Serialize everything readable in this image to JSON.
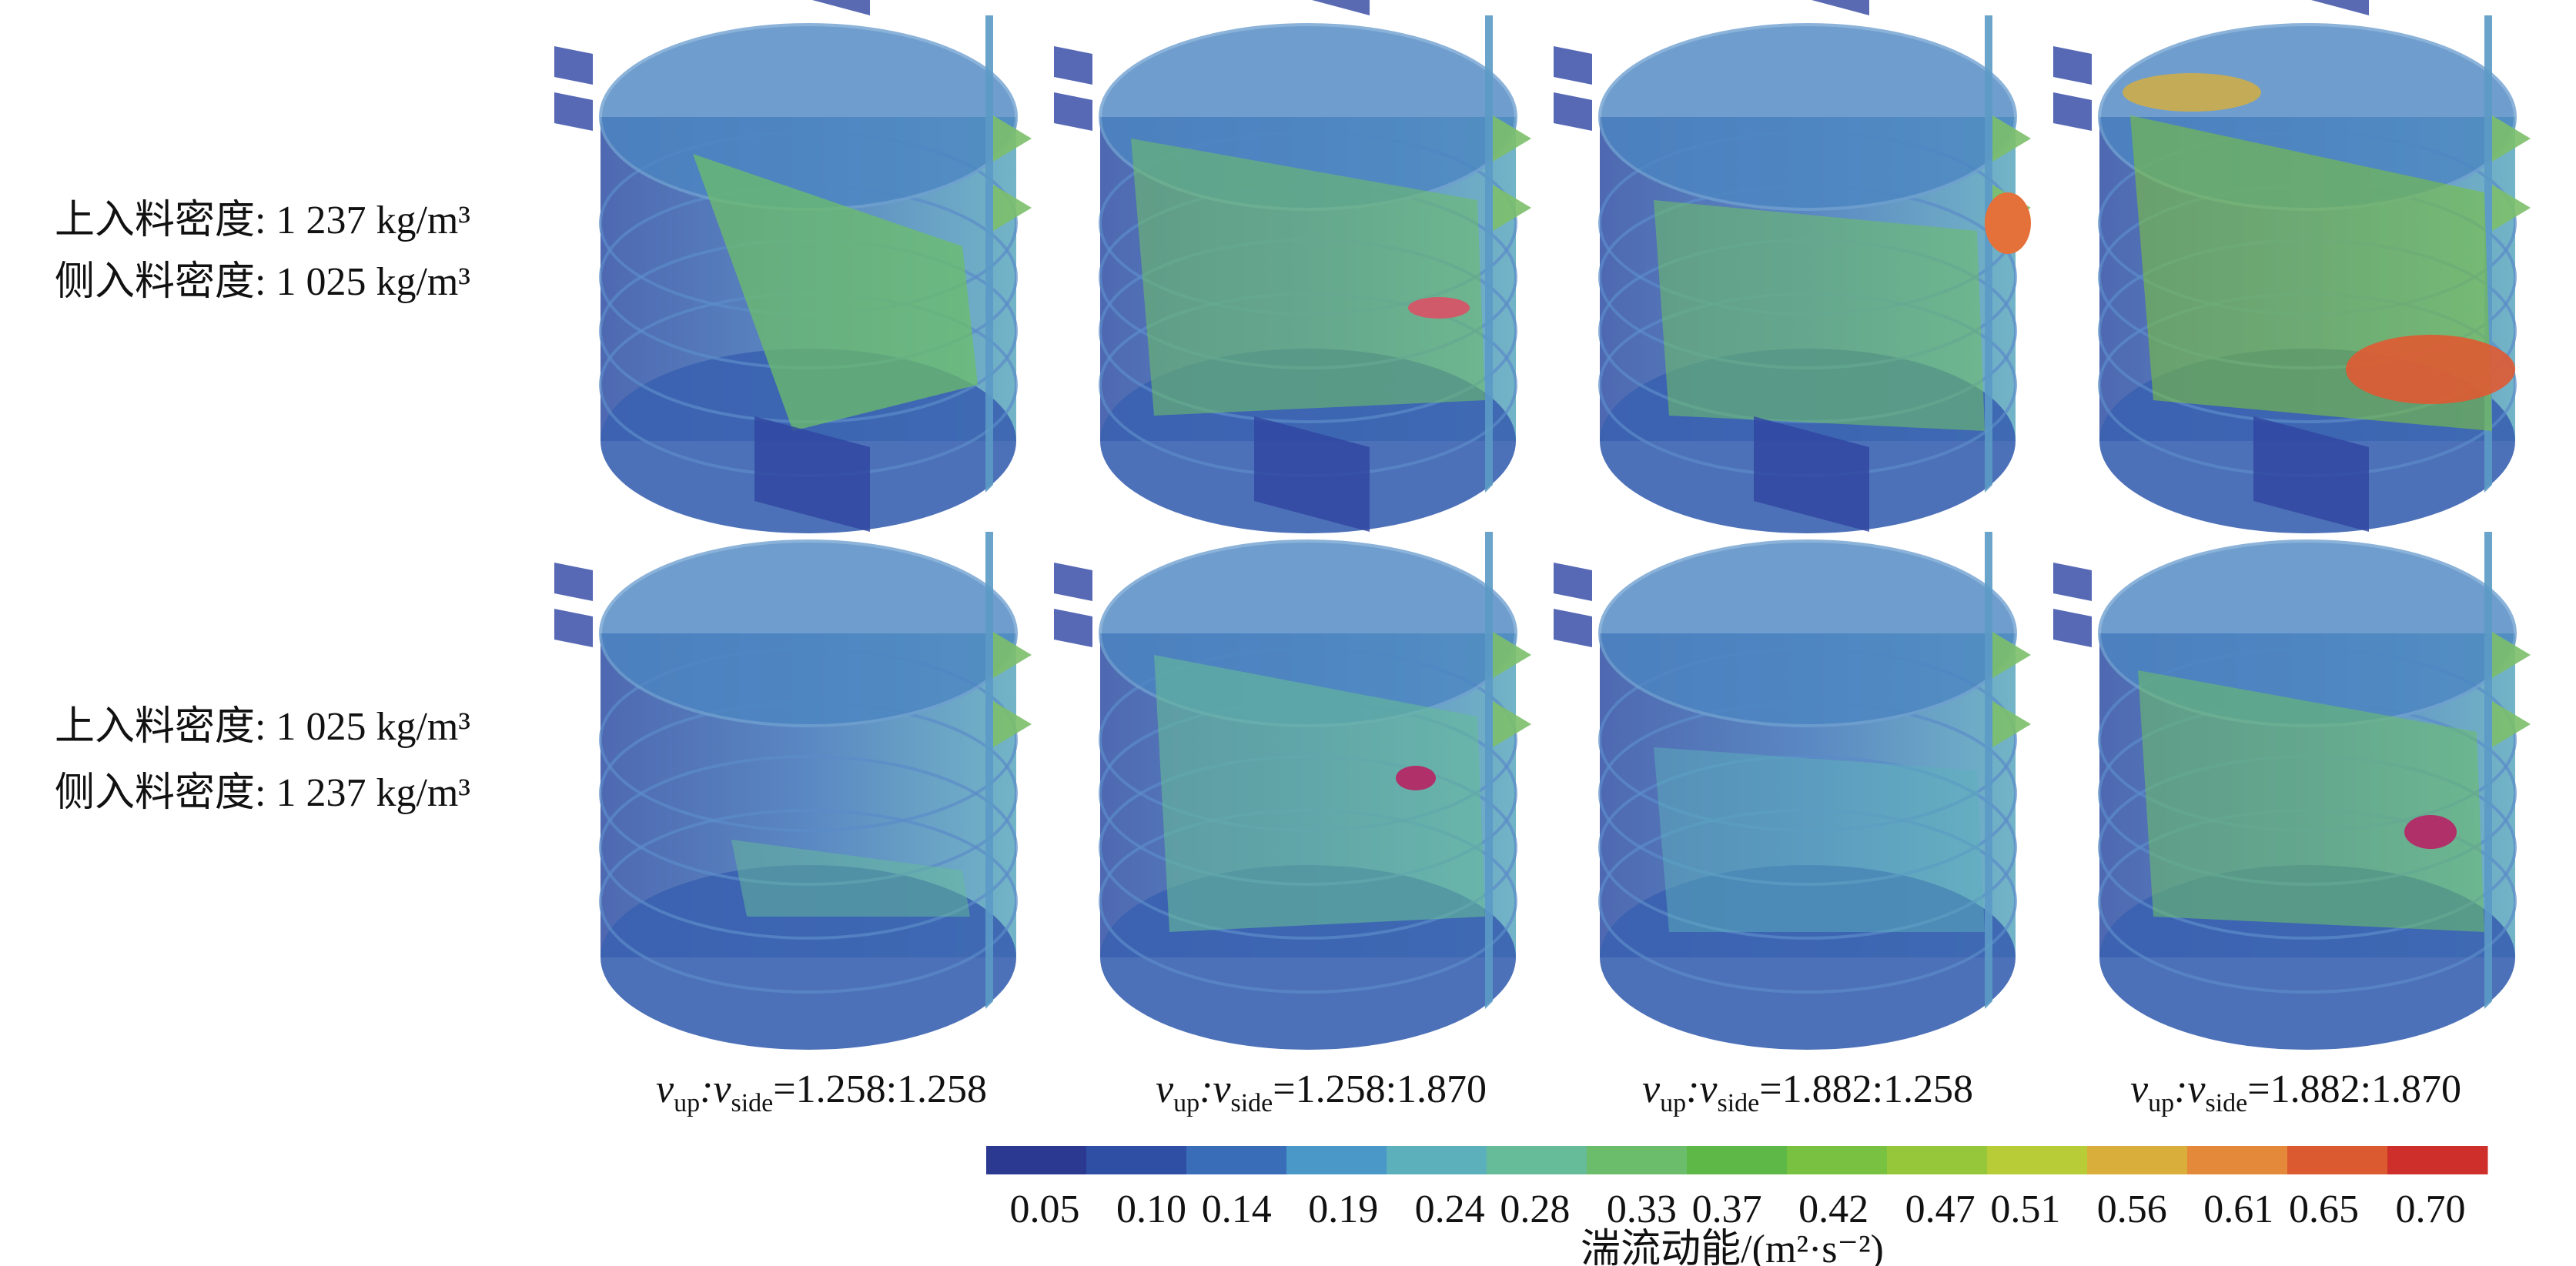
{
  "row_labels": [
    {
      "lines": [
        "上入料密度: 1 237 kg/m³",
        "侧入料密度: 1 025 kg/m³"
      ]
    },
    {
      "lines": [
        "上入料密度: 1 025 kg/m³",
        "侧入料密度: 1 237 kg/m³"
      ]
    }
  ],
  "column_labels": [
    {
      "v1": "v",
      "sub1": "up",
      "v2": ":v",
      "sub2": "side",
      "ratio": "=1.258:1.258"
    },
    {
      "v1": "v",
      "sub1": "up",
      "v2": ":v",
      "sub2": "side",
      "ratio": "=1.258:1.870"
    },
    {
      "v1": "v",
      "sub1": "up",
      "v2": ":v",
      "sub2": "side",
      "ratio": "=1.882:1.258"
    },
    {
      "v1": "v",
      "sub1": "up",
      "v2": ":v",
      "sub2": "side",
      "ratio": "=1.882:1.870"
    }
  ],
  "colorbar": {
    "title": "湍流动能/(m²·s⁻²)",
    "colors": [
      "#2b3990",
      "#2f4fa4",
      "#3a6db7",
      "#4a98c8",
      "#5bb0bc",
      "#66bb98",
      "#6bbd6c",
      "#5db848",
      "#79c140",
      "#96c73a",
      "#b8cc38",
      "#d9ae3a",
      "#e4883a",
      "#dc5a30",
      "#cf2f2b"
    ],
    "ticks": [
      0.05,
      {
        "value": 0.1,
        "label": "0.10"
      },
      0.14,
      0.19,
      0.24,
      0.28,
      0.33,
      0.37,
      0.42,
      0.47,
      0.51,
      0.56,
      0.61,
      0.65,
      {
        "value": 0.7,
        "label": "0.70"
      }
    ]
  }
}
